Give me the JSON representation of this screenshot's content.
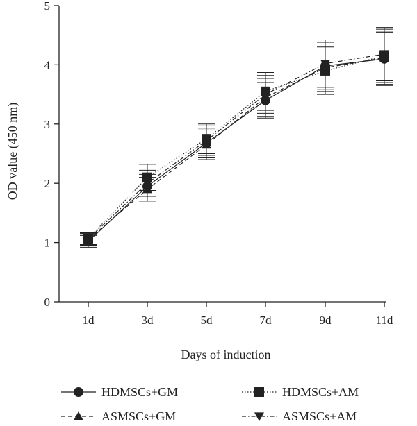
{
  "chart_data": {
    "type": "line",
    "categories": [
      "1d",
      "3d",
      "5d",
      "7d",
      "9d",
      "11d"
    ],
    "xlabel": "Days of induction",
    "ylabel": "OD value (450 nm)",
    "ylim": [
      0,
      5
    ],
    "yticks": [
      0,
      1,
      2,
      3,
      4,
      5
    ],
    "grid": false,
    "legend_position": "bottom",
    "series": [
      {
        "name": "HDMSCs+GM",
        "marker": "circle",
        "line_style": "solid",
        "values": [
          1.02,
          1.95,
          2.68,
          3.4,
          3.98,
          4.1
        ],
        "errors": [
          0.1,
          0.2,
          0.25,
          0.3,
          0.4,
          0.45
        ]
      },
      {
        "name": "HDMSCs+AM",
        "marker": "square",
        "line_style": "dotted",
        "values": [
          1.07,
          2.1,
          2.75,
          3.55,
          3.9,
          4.15
        ],
        "errors": [
          0.1,
          0.22,
          0.25,
          0.32,
          0.4,
          0.45
        ]
      },
      {
        "name": "ASMSCs+GM",
        "marker": "triangle-up",
        "line_style": "dashed",
        "values": [
          1.05,
          1.9,
          2.65,
          3.45,
          3.95,
          4.12
        ],
        "errors": [
          0.1,
          0.2,
          0.25,
          0.32,
          0.4,
          0.45
        ]
      },
      {
        "name": "ASMSCs+AM",
        "marker": "triangle-down",
        "line_style": "dash-dot",
        "values": [
          1.06,
          2.0,
          2.72,
          3.5,
          4.02,
          4.18
        ],
        "errors": [
          0.1,
          0.22,
          0.25,
          0.32,
          0.4,
          0.45
        ]
      }
    ]
  }
}
